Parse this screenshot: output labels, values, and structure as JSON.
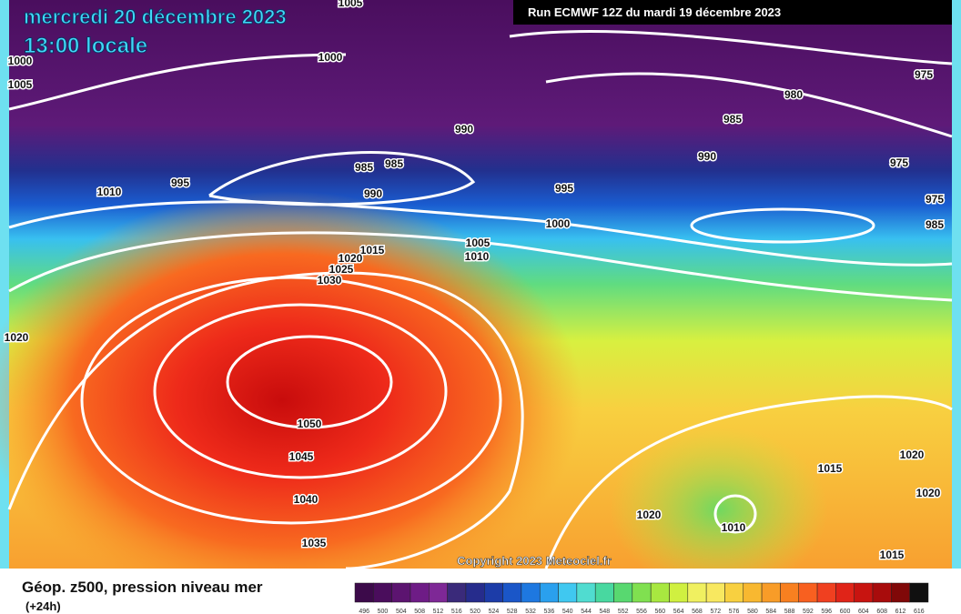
{
  "header": {
    "date": "mercredi 20 décembre 2023",
    "time": "13:00 locale",
    "run": "Run ECMWF 12Z du mardi 19 décembre 2023"
  },
  "copyright": "Copyright 2023 Meteociel.fr",
  "isobar_labels": [
    "1005",
    "1000",
    "1005",
    "1000",
    "990",
    "985",
    "985",
    "990",
    "1010",
    "995",
    "995",
    "1000",
    "1005",
    "1010",
    "1015",
    "1020",
    "1025",
    "1030",
    "1050",
    "1045",
    "1040",
    "1035",
    "985",
    "980",
    "975",
    "990",
    "975",
    "975",
    "985",
    "1020",
    "1015",
    "1020",
    "1020",
    "1010",
    "1015",
    "1020"
  ],
  "legend": {
    "title": "Géop. z500, pression niveau mer",
    "subtitle": "(+24h)",
    "labels": [
      "496",
      "500",
      "504",
      "508",
      "512",
      "516",
      "520",
      "524",
      "528",
      "532",
      "536",
      "540",
      "544",
      "548",
      "552",
      "556",
      "560",
      "564",
      "568",
      "572",
      "576",
      "580",
      "584",
      "588",
      "592",
      "596",
      "600",
      "604",
      "608",
      "612",
      "616"
    ],
    "colors": [
      "#3c0a4a",
      "#4a0d5c",
      "#5c1470",
      "#6e1c86",
      "#7e2896",
      "#3a2a7a",
      "#262c8c",
      "#1c3ca8",
      "#1a56c8",
      "#1e78e0",
      "#2aa0ee",
      "#40c8f0",
      "#50dcd0",
      "#48d8a0",
      "#58d870",
      "#80e050",
      "#a8e840",
      "#d0f040",
      "#f0f060",
      "#f8e860",
      "#f8d040",
      "#f8b830",
      "#f89c28",
      "#f88020",
      "#f86020",
      "#f04020",
      "#e02418",
      "#c81410",
      "#a80c0c",
      "#800808",
      "#101010"
    ]
  }
}
